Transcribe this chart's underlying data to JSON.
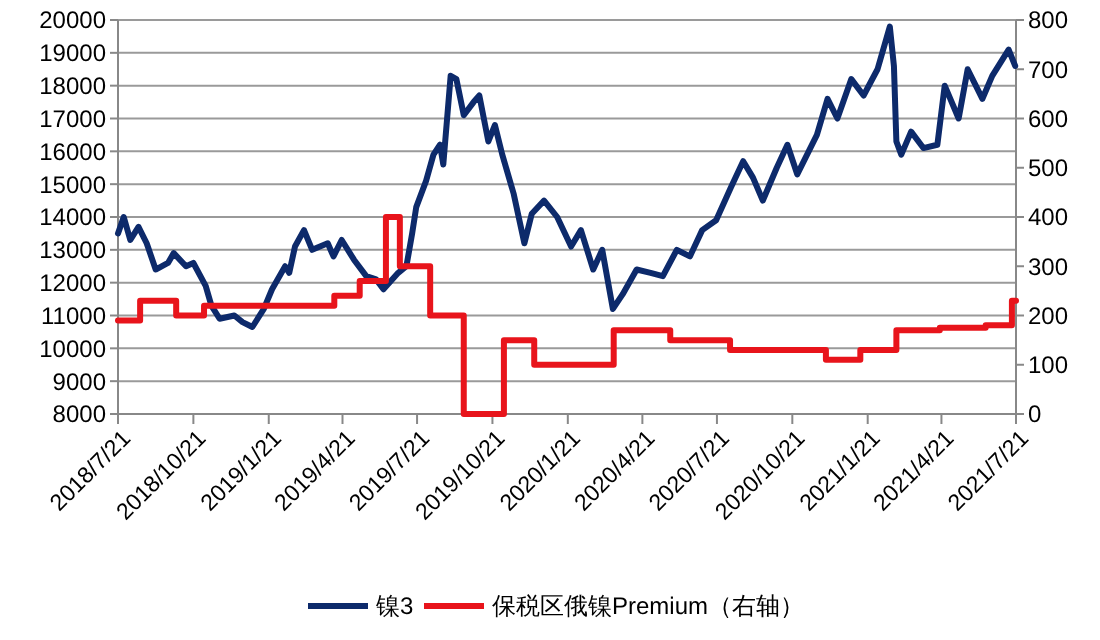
{
  "chart_data": {
    "type": "line",
    "xlim": [
      "2018-07-21",
      "2021-07-21"
    ],
    "xticks": [
      {
        "value": "2018-07-21",
        "label": "2018/7/21"
      },
      {
        "value": "2018-10-21",
        "label": "2018/10/21"
      },
      {
        "value": "2019-01-21",
        "label": "2019/1/21"
      },
      {
        "value": "2019-04-21",
        "label": "2019/4/21"
      },
      {
        "value": "2019-07-21",
        "label": "2019/7/21"
      },
      {
        "value": "2019-10-21",
        "label": "2019/10/21"
      },
      {
        "value": "2020-01-21",
        "label": "2020/1/21"
      },
      {
        "value": "2020-04-21",
        "label": "2020/4/21"
      },
      {
        "value": "2020-07-21",
        "label": "2020/7/21"
      },
      {
        "value": "2020-10-21",
        "label": "2020/10/21"
      },
      {
        "value": "2021-01-21",
        "label": "2021/1/21"
      },
      {
        "value": "2021-04-21",
        "label": "2021/4/21"
      },
      {
        "value": "2021-07-21",
        "label": "2021/7/21"
      }
    ],
    "ylim": [
      8000,
      20000
    ],
    "yticks": [
      8000,
      9000,
      10000,
      11000,
      12000,
      13000,
      14000,
      15000,
      16000,
      17000,
      18000,
      19000,
      20000
    ],
    "y2lim": [
      0,
      800
    ],
    "y2ticks": [
      0,
      100,
      200,
      300,
      400,
      500,
      600,
      700,
      800
    ],
    "grid": "y",
    "legend": "bottom",
    "series": [
      {
        "name": "镍3",
        "color": "#0d2a6b",
        "type": "line",
        "x": [
          "2018-07-21",
          "2018-07-28",
          "2018-08-05",
          "2018-08-15",
          "2018-08-25",
          "2018-09-05",
          "2018-09-20",
          "2018-09-27",
          "2018-10-12",
          "2018-10-21",
          "2018-11-05",
          "2018-11-12",
          "2018-11-22",
          "2018-12-10",
          "2018-12-20",
          "2019-01-01",
          "2019-01-15",
          "2019-01-25",
          "2019-02-10",
          "2019-02-15",
          "2019-02-22",
          "2019-03-05",
          "2019-03-15",
          "2019-04-03",
          "2019-04-10",
          "2019-04-20",
          "2019-05-05",
          "2019-05-20",
          "2019-06-01",
          "2019-06-10",
          "2019-06-28",
          "2019-07-08",
          "2019-07-15",
          "2019-07-20",
          "2019-08-01",
          "2019-08-10",
          "2019-08-18",
          "2019-08-22",
          "2019-08-31",
          "2019-09-07",
          "2019-09-16",
          "2019-09-28",
          "2019-10-05",
          "2019-10-16",
          "2019-10-24",
          "2019-11-02",
          "2019-11-16",
          "2019-11-29",
          "2019-12-08",
          "2019-12-23",
          "2020-01-08",
          "2020-01-25",
          "2020-02-06",
          "2020-02-21",
          "2020-03-03",
          "2020-03-16",
          "2020-03-28",
          "2020-04-14",
          "2020-05-01",
          "2020-05-16",
          "2020-06-02",
          "2020-06-18",
          "2020-07-03",
          "2020-07-20",
          "2020-08-07",
          "2020-08-22",
          "2020-09-03",
          "2020-09-15",
          "2020-10-02",
          "2020-10-15",
          "2020-10-27",
          "2020-11-20",
          "2020-12-03",
          "2020-12-15",
          "2021-01-01",
          "2021-01-16",
          "2021-02-02",
          "2021-02-17",
          "2021-02-22",
          "2021-02-25",
          "2021-03-03",
          "2021-03-15",
          "2021-03-30",
          "2021-04-16",
          "2021-04-25",
          "2021-05-12",
          "2021-05-23",
          "2021-06-10",
          "2021-06-22",
          "2021-07-12",
          "2021-07-20"
        ],
        "values": [
          13500,
          14000,
          13300,
          13700,
          13200,
          12400,
          12600,
          12900,
          12500,
          12600,
          11900,
          11300,
          10900,
          11000,
          10800,
          10650,
          11200,
          11800,
          12500,
          12300,
          13100,
          13600,
          13000,
          13200,
          12800,
          13300,
          12700,
          12200,
          12100,
          11800,
          12300,
          12500,
          13500,
          14300,
          15100,
          15900,
          16200,
          15600,
          18300,
          18200,
          17100,
          17500,
          17700,
          16300,
          16800,
          15900,
          14700,
          13200,
          14100,
          14500,
          14000,
          13100,
          13600,
          12400,
          13000,
          11200,
          11650,
          12400,
          12300,
          12200,
          13000,
          12800,
          13600,
          13900,
          14900,
          15700,
          15200,
          14500,
          15500,
          16200,
          15300,
          16500,
          17600,
          17000,
          18200,
          17700,
          18500,
          19800,
          18600,
          16300,
          15900,
          16600,
          16100,
          16200,
          18000,
          17000,
          18500,
          17600,
          18300,
          19100,
          18600
        ]
      },
      {
        "name": "保税区俄镍Premium（右轴）",
        "color": "#e8141b",
        "type": "step",
        "axis": "y2",
        "x": [
          "2018-07-21",
          "2018-08-17",
          "2018-09-30",
          "2018-11-03",
          "2019-04-11",
          "2019-05-12",
          "2019-06-13",
          "2019-06-30",
          "2019-08-06",
          "2019-09-16",
          "2019-11-04",
          "2019-12-11",
          "2020-03-17",
          "2020-05-25",
          "2020-08-06",
          "2020-12-01",
          "2021-01-12",
          "2021-02-25",
          "2021-04-19",
          "2021-06-14",
          "2021-07-16",
          "2021-07-21"
        ],
        "values": [
          190,
          230,
          200,
          220,
          240,
          270,
          400,
          300,
          200,
          0,
          150,
          100,
          170,
          150,
          130,
          110,
          130,
          170,
          175,
          180,
          230,
          230
        ]
      }
    ]
  }
}
